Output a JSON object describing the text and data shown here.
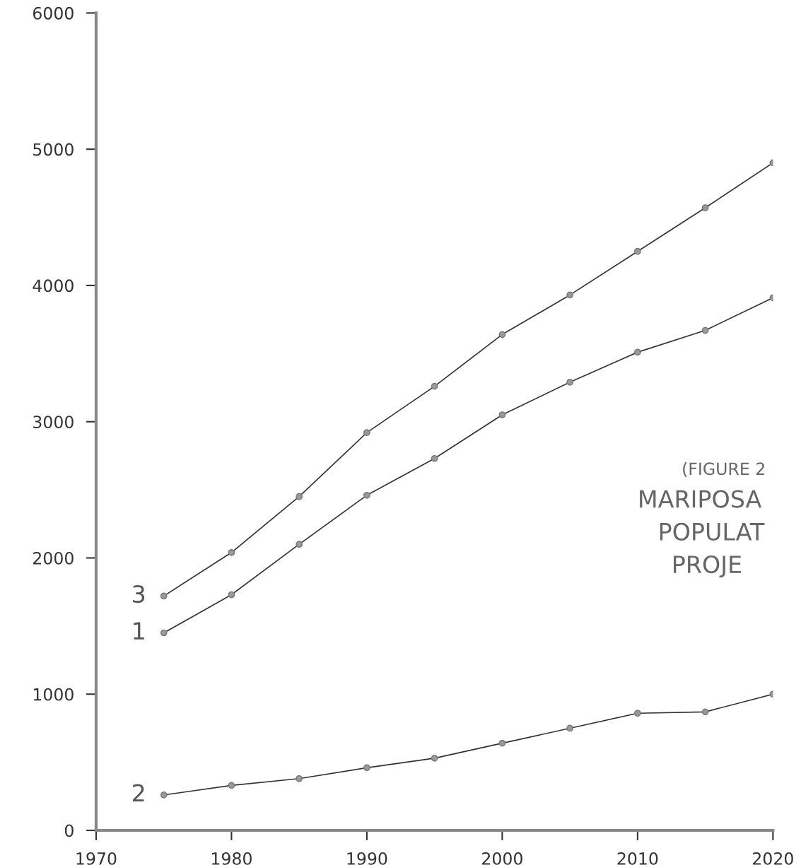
{
  "chart_data": {
    "type": "line",
    "x": [
      1975,
      1980,
      1985,
      1990,
      1995,
      2000,
      2005,
      2010,
      2015,
      2020
    ],
    "series": [
      {
        "name": "3",
        "color": "#333333",
        "values": [
          1720,
          2040,
          2450,
          2920,
          3260,
          3640,
          3930,
          4250,
          4570,
          4900
        ]
      },
      {
        "name": "1",
        "color": "#333333",
        "values": [
          1450,
          1730,
          2100,
          2460,
          2730,
          3050,
          3290,
          3510,
          3670,
          3910
        ]
      },
      {
        "name": "2",
        "color": "#333333",
        "values": [
          260,
          330,
          380,
          460,
          530,
          640,
          750,
          860,
          870,
          1000
        ]
      }
    ],
    "xlim": [
      1970,
      2020
    ],
    "xticks": [
      1970,
      1980,
      1990,
      2000,
      2010,
      2020
    ],
    "ylim": [
      0,
      6000
    ],
    "yticks": [
      0,
      1000,
      2000,
      3000,
      4000,
      5000,
      6000
    ],
    "marker": "circle",
    "line_style": "solid",
    "grid": false,
    "legend": false,
    "annotations": [
      "(FIGURE 2",
      "MARIPOSA",
      "POPULAT",
      "PROJE"
    ]
  }
}
